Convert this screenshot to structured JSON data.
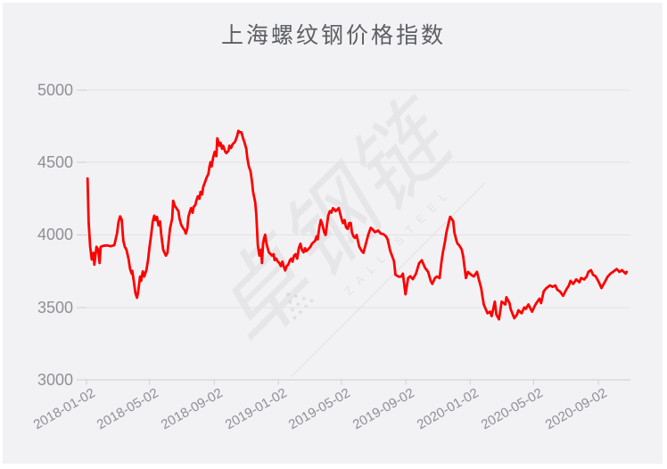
{
  "title": "上海螺纹钢价格指数",
  "watermark": {
    "cn": "卓钢链",
    "en": "ZALL STEEL"
  },
  "colors": {
    "line": "#fe0000",
    "card_background": "#f2f2f4",
    "grid": "#e2e2e6",
    "axis": "#cdced2",
    "label": "#8f9095",
    "title": "#5d5f63"
  },
  "chart_data": {
    "type": "line",
    "title": "上海螺纹钢价格指数",
    "series_name": "上海螺纹钢价格指数",
    "legend": false,
    "grid": true,
    "ylim": [
      3000,
      5000
    ],
    "y_ticks": [
      5000,
      4500,
      4000,
      3500,
      3000
    ],
    "y_tick_labels": [
      "5000",
      "4500",
      "4000",
      "3500",
      "3000"
    ],
    "x_start_date": "2018-01-02",
    "x_unit": "days_since_x_start_date",
    "x_tick_days": [
      0,
      120,
      243,
      365,
      485,
      608,
      730,
      851,
      974
    ],
    "x_tick_labels": [
      "2018-01-02",
      "2018-05-02",
      "2018-09-02",
      "2019-01-02",
      "2019-05-02",
      "2019-09-02",
      "2020-01-02",
      "2020-05-02",
      "2020-09-02"
    ],
    "points": [
      [
        2,
        4390
      ],
      [
        4,
        4090
      ],
      [
        7,
        3920
      ],
      [
        10,
        3830
      ],
      [
        13,
        3877
      ],
      [
        15,
        3795
      ],
      [
        19,
        3918
      ],
      [
        22,
        3900
      ],
      [
        25,
        3806
      ],
      [
        27,
        3918
      ],
      [
        32,
        3925
      ],
      [
        39,
        3928
      ],
      [
        46,
        3922
      ],
      [
        53,
        3930
      ],
      [
        58,
        4010
      ],
      [
        61,
        4090
      ],
      [
        64,
        4128
      ],
      [
        67,
        4105
      ],
      [
        70,
        3960
      ],
      [
        73,
        3918
      ],
      [
        76,
        3898
      ],
      [
        80,
        3837
      ],
      [
        83,
        3765
      ],
      [
        86,
        3733
      ],
      [
        87,
        3752
      ],
      [
        90,
        3683
      ],
      [
        93,
        3601
      ],
      [
        96,
        3566
      ],
      [
        98,
        3600
      ],
      [
        102,
        3713
      ],
      [
        104,
        3683
      ],
      [
        107,
        3748
      ],
      [
        110,
        3713
      ],
      [
        114,
        3758
      ],
      [
        117,
        3826
      ],
      [
        120,
        3918
      ],
      [
        123,
        4000
      ],
      [
        126,
        4093
      ],
      [
        129,
        4133
      ],
      [
        131,
        4103
      ],
      [
        134,
        4124
      ],
      [
        137,
        4066
      ],
      [
        140,
        4093
      ],
      [
        142,
        4010
      ],
      [
        146,
        3898
      ],
      [
        151,
        3857
      ],
      [
        154,
        3877
      ],
      [
        157,
        3980
      ],
      [
        159,
        4045
      ],
      [
        163,
        4113
      ],
      [
        165,
        4236
      ],
      [
        168,
        4201
      ],
      [
        171,
        4185
      ],
      [
        175,
        4164
      ],
      [
        177,
        4113
      ],
      [
        180,
        4072
      ],
      [
        183,
        4052
      ],
      [
        187,
        4031
      ],
      [
        189,
        4010
      ],
      [
        192,
        4045
      ],
      [
        194,
        4124
      ],
      [
        197,
        4164
      ],
      [
        199,
        4185
      ],
      [
        202,
        4154
      ],
      [
        204,
        4195
      ],
      [
        207,
        4205
      ],
      [
        209,
        4236
      ],
      [
        212,
        4267
      ],
      [
        215,
        4250
      ],
      [
        217,
        4298
      ],
      [
        220,
        4280
      ],
      [
        222,
        4329
      ],
      [
        226,
        4370
      ],
      [
        229,
        4400
      ],
      [
        232,
        4421
      ],
      [
        234,
        4472
      ],
      [
        236,
        4503
      ],
      [
        238,
        4472
      ],
      [
        241,
        4533
      ],
      [
        244,
        4574
      ],
      [
        247,
        4544
      ],
      [
        249,
        4667
      ],
      [
        253,
        4616
      ],
      [
        255,
        4636
      ],
      [
        258,
        4595
      ],
      [
        260,
        4616
      ],
      [
        264,
        4574
      ],
      [
        266,
        4564
      ],
      [
        270,
        4580
      ],
      [
        272,
        4616
      ],
      [
        275,
        4600
      ],
      [
        278,
        4626
      ],
      [
        281,
        4636
      ],
      [
        283,
        4646
      ],
      [
        287,
        4687
      ],
      [
        289,
        4718
      ],
      [
        292,
        4708
      ],
      [
        295,
        4708
      ],
      [
        298,
        4667
      ],
      [
        300,
        4646
      ],
      [
        304,
        4595
      ],
      [
        306,
        4533
      ],
      [
        309,
        4472
      ],
      [
        312,
        4441
      ],
      [
        315,
        4370
      ],
      [
        317,
        4298
      ],
      [
        321,
        4226
      ],
      [
        323,
        4144
      ],
      [
        326,
        3931
      ],
      [
        329,
        3857
      ],
      [
        332,
        3898
      ],
      [
        334,
        3806
      ],
      [
        336,
        3940
      ],
      [
        338,
        3980
      ],
      [
        340,
        4002
      ],
      [
        342,
        3950
      ],
      [
        344,
        3920
      ],
      [
        347,
        3880
      ],
      [
        350,
        3868
      ],
      [
        353,
        3857
      ],
      [
        356,
        3867
      ],
      [
        358,
        3826
      ],
      [
        361,
        3837
      ],
      [
        364,
        3816
      ],
      [
        367,
        3806
      ],
      [
        370,
        3785
      ],
      [
        373,
        3816
      ],
      [
        375,
        3785
      ],
      [
        378,
        3755
      ],
      [
        381,
        3785
      ],
      [
        384,
        3795
      ],
      [
        387,
        3826
      ],
      [
        390,
        3837
      ],
      [
        392,
        3816
      ],
      [
        395,
        3857
      ],
      [
        398,
        3867
      ],
      [
        401,
        3837
      ],
      [
        404,
        3908
      ],
      [
        407,
        3940
      ],
      [
        410,
        3898
      ],
      [
        413,
        3880
      ],
      [
        416,
        3908
      ],
      [
        418,
        3888
      ],
      [
        421,
        3898
      ],
      [
        426,
        3918
      ],
      [
        429,
        3939
      ],
      [
        435,
        3960
      ],
      [
        438,
        3990
      ],
      [
        440,
        3970
      ],
      [
        443,
        4052
      ],
      [
        446,
        4103
      ],
      [
        449,
        4072
      ],
      [
        452,
        4021
      ],
      [
        455,
        4000
      ],
      [
        457,
        4052
      ],
      [
        460,
        4134
      ],
      [
        463,
        4164
      ],
      [
        466,
        4154
      ],
      [
        469,
        4185
      ],
      [
        472,
        4175
      ],
      [
        474,
        4164
      ],
      [
        477,
        4175
      ],
      [
        480,
        4185
      ],
      [
        483,
        4144
      ],
      [
        486,
        4103
      ],
      [
        488,
        4082
      ],
      [
        491,
        4103
      ],
      [
        494,
        4052
      ],
      [
        497,
        4042
      ],
      [
        500,
        4082
      ],
      [
        503,
        4082
      ],
      [
        505,
        4021
      ],
      [
        508,
        3990
      ],
      [
        511,
        3980
      ],
      [
        514,
        4000
      ],
      [
        519,
        3918
      ],
      [
        524,
        3888
      ],
      [
        527,
        3877
      ],
      [
        531,
        3930
      ],
      [
        536,
        4000
      ],
      [
        541,
        4050
      ],
      [
        544,
        4040
      ],
      [
        549,
        4020
      ],
      [
        555,
        4030
      ],
      [
        560,
        4010
      ],
      [
        565,
        4005
      ],
      [
        570,
        3990
      ],
      [
        573,
        3970
      ],
      [
        578,
        3890
      ],
      [
        585,
        3820
      ],
      [
        588,
        3725
      ],
      [
        594,
        3712
      ],
      [
        599,
        3713
      ],
      [
        602,
        3733
      ],
      [
        607,
        3590
      ],
      [
        612,
        3702
      ],
      [
        616,
        3715
      ],
      [
        621,
        3695
      ],
      [
        627,
        3733
      ],
      [
        633,
        3805
      ],
      [
        638,
        3825
      ],
      [
        644,
        3775
      ],
      [
        650,
        3745
      ],
      [
        655,
        3683
      ],
      [
        658,
        3662
      ],
      [
        663,
        3702
      ],
      [
        667,
        3713
      ],
      [
        672,
        3702
      ],
      [
        675,
        3800
      ],
      [
        678,
        3877
      ],
      [
        682,
        3950
      ],
      [
        685,
        4020
      ],
      [
        689,
        4080
      ],
      [
        692,
        4125
      ],
      [
        695,
        4110
      ],
      [
        698,
        4094
      ],
      [
        700,
        4020
      ],
      [
        704,
        3960
      ],
      [
        706,
        3940
      ],
      [
        709,
        3930
      ],
      [
        714,
        3900
      ],
      [
        717,
        3850
      ],
      [
        720,
        3760
      ],
      [
        722,
        3703
      ],
      [
        726,
        3745
      ],
      [
        729,
        3735
      ],
      [
        732,
        3725
      ],
      [
        737,
        3713
      ],
      [
        743,
        3745
      ],
      [
        746,
        3703
      ],
      [
        751,
        3633
      ],
      [
        756,
        3520
      ],
      [
        763,
        3460
      ],
      [
        768,
        3470
      ],
      [
        771,
        3440
      ],
      [
        777,
        3540
      ],
      [
        780,
        3450
      ],
      [
        785,
        3418
      ],
      [
        790,
        3540
      ],
      [
        797,
        3520
      ],
      [
        799,
        3570
      ],
      [
        805,
        3530
      ],
      [
        807,
        3490
      ],
      [
        814,
        3425
      ],
      [
        819,
        3450
      ],
      [
        822,
        3480
      ],
      [
        828,
        3460
      ],
      [
        833,
        3500
      ],
      [
        836,
        3490
      ],
      [
        841,
        3520
      ],
      [
        848,
        3470
      ],
      [
        853,
        3510
      ],
      [
        856,
        3530
      ],
      [
        862,
        3560
      ],
      [
        865,
        3530
      ],
      [
        870,
        3610
      ],
      [
        875,
        3633
      ],
      [
        882,
        3652
      ],
      [
        887,
        3642
      ],
      [
        892,
        3652
      ],
      [
        896,
        3622
      ],
      [
        901,
        3610
      ],
      [
        907,
        3580
      ],
      [
        913,
        3622
      ],
      [
        918,
        3652
      ],
      [
        921,
        3683
      ],
      [
        926,
        3662
      ],
      [
        932,
        3693
      ],
      [
        938,
        3673
      ],
      [
        941,
        3703
      ],
      [
        947,
        3693
      ],
      [
        952,
        3713
      ],
      [
        955,
        3745
      ],
      [
        960,
        3757
      ],
      [
        964,
        3725
      ],
      [
        969,
        3713
      ],
      [
        975,
        3673
      ],
      [
        980,
        3633
      ],
      [
        986,
        3673
      ],
      [
        992,
        3713
      ],
      [
        997,
        3733
      ],
      [
        1002,
        3745
      ],
      [
        1009,
        3765
      ],
      [
        1014,
        3745
      ],
      [
        1019,
        3757
      ],
      [
        1026,
        3733
      ],
      [
        1028,
        3745
      ]
    ]
  }
}
